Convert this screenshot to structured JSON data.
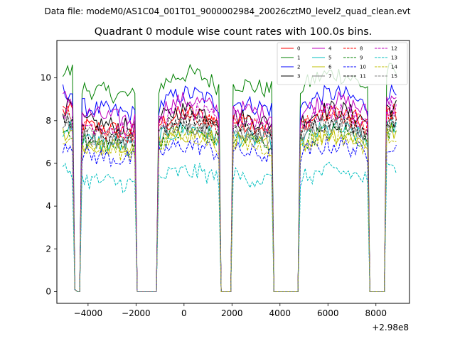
{
  "chart_data": {
    "type": "line",
    "suptitle": "Data file: modeM0/AS1C04_001T01_9000002984_20026cztM0_level2_quad_clean.evt",
    "title": "Quadrant 0 module wise count rates with 100.0s bins.",
    "xlabel": "",
    "ylabel": "",
    "x_offset_label": "+2.98e8",
    "xlim": [
      -5300,
      9400
    ],
    "ylim": [
      -0.55,
      11.75
    ],
    "x_ticks": [
      -4000,
      -2000,
      0,
      2000,
      4000,
      6000,
      8000
    ],
    "x_tick_labels": [
      "−4000",
      "−2000",
      "0",
      "2000",
      "4000",
      "6000",
      "8000"
    ],
    "y_ticks": [
      0,
      2,
      4,
      6,
      8,
      10
    ],
    "y_tick_labels": [
      "0",
      "2",
      "4",
      "6",
      "8",
      "10"
    ],
    "legend_position": "top-right",
    "time_segments": [
      {
        "start": -5050,
        "end": -4650
      },
      {
        "start": -4250,
        "end": -2050
      },
      {
        "start": -1050,
        "end": 1450
      },
      {
        "start": 2050,
        "end": 3650
      },
      {
        "start": 4850,
        "end": 7650
      },
      {
        "start": 8450,
        "end": 8850
      }
    ],
    "series": [
      {
        "name": "0",
        "color": "#ff0000",
        "dash": "solid",
        "level": 8.0
      },
      {
        "name": "1",
        "color": "#008000",
        "dash": "solid",
        "level": 9.8
      },
      {
        "name": "2",
        "color": "#0000ff",
        "dash": "solid",
        "level": 8.9
      },
      {
        "name": "3",
        "color": "#000000",
        "dash": "solid",
        "level": 8.2
      },
      {
        "name": "4",
        "color": "#bf00bf",
        "dash": "solid",
        "level": 8.6
      },
      {
        "name": "5",
        "color": "#00bfbf",
        "dash": "solid",
        "level": 7.3
      },
      {
        "name": "6",
        "color": "#bfbf00",
        "dash": "solid",
        "level": 7.1
      },
      {
        "name": "7",
        "color": "#7f7f7f",
        "dash": "solid",
        "level": 7.5
      },
      {
        "name": "8",
        "color": "#ff0000",
        "dash": "dashed",
        "level": 7.9
      },
      {
        "name": "9",
        "color": "#008000",
        "dash": "dashed",
        "level": 7.2
      },
      {
        "name": "10",
        "color": "#0000ff",
        "dash": "dashed",
        "level": 6.6
      },
      {
        "name": "11",
        "color": "#000000",
        "dash": "dashed",
        "level": 7.7
      },
      {
        "name": "12",
        "color": "#bf00bf",
        "dash": "dashed",
        "level": 8.1
      },
      {
        "name": "13",
        "color": "#00bfbf",
        "dash": "dashed",
        "level": 5.4
      },
      {
        "name": "14",
        "color": "#bfbf00",
        "dash": "dashed",
        "level": 7.0
      },
      {
        "name": "15",
        "color": "#7f7f7f",
        "dash": "dashed",
        "level": 7.6
      }
    ]
  }
}
